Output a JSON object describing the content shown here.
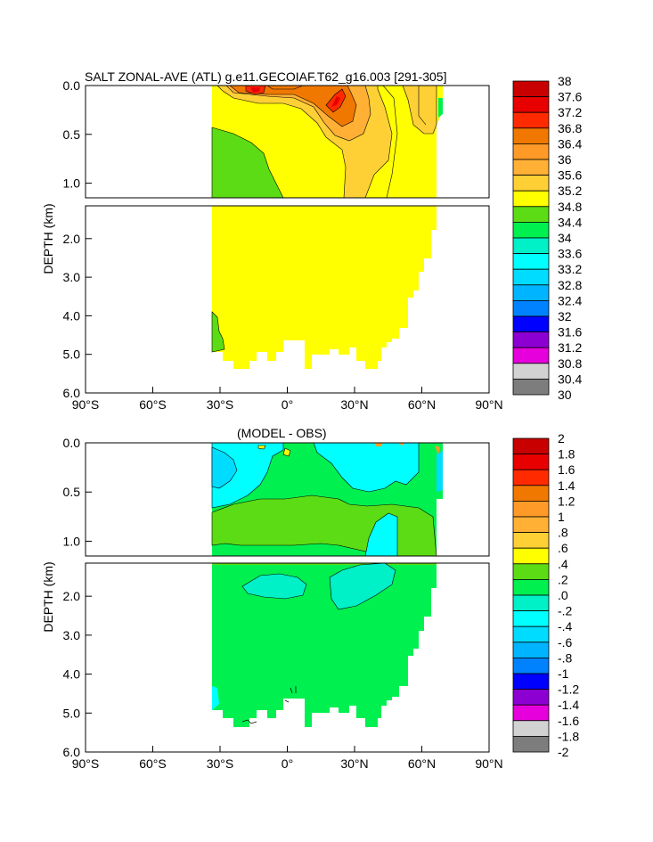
{
  "chart_data": [
    {
      "type": "heatmap",
      "title": "SALT ZONAL-AVE (ATL) g.e11.GECOIAF.T62_g16.003 [291-305]",
      "ylabel": "DEPTH (km)",
      "xlim": [
        -90,
        90
      ],
      "ylim_upper_km": [
        0.0,
        1.15
      ],
      "ylim_lower_km": [
        1.15,
        6.0
      ],
      "x_ticks": [
        -90,
        -60,
        -30,
        0,
        30,
        60,
        90
      ],
      "x_tick_labels": [
        "90°S",
        "60°S",
        "30°S",
        "0°",
        "30°N",
        "60°N",
        "90°N"
      ],
      "y_ticks_upper": [
        0.0,
        0.5,
        1.0
      ],
      "y_tick_labels_upper": [
        "0.0",
        "0.5",
        "1.0"
      ],
      "y_ticks_lower": [
        2.0,
        3.0,
        4.0,
        5.0,
        6.0
      ],
      "y_tick_labels_lower": [
        "2.0",
        "3.0",
        "4.0",
        "5.0",
        "6.0"
      ],
      "colorbar_labels": [
        "38",
        "37.6",
        "37.2",
        "36.8",
        "36.4",
        "36",
        "35.6",
        "35.2",
        "34.8",
        "34.4",
        "34",
        "33.6",
        "33.2",
        "32.8",
        "32.4",
        "32",
        "31.6",
        "31.2",
        "30.8",
        "30.4",
        "30"
      ],
      "colorbar_colors": [
        "#c80000",
        "#e80000",
        "#ff2a00",
        "#f07800",
        "#ff9a28",
        "#ffb035",
        "#ffd035",
        "#ffff00",
        "#5cdc14",
        "#00f050",
        "#00f0c8",
        "#00ffff",
        "#00dcff",
        "#00b4ff",
        "#0082ff",
        "#0000ff",
        "#8c00d2",
        "#e600dc",
        "#d2d2d2",
        "#7d7d7d"
      ],
      "field_description": "Zonal-average Atlantic salinity; background ~34.8-35.2 at depth, high-salinity core (36-37.6) near surface 0-30N, fresher 34.4-34.8 south of 20S above 1 km"
    },
    {
      "type": "heatmap",
      "title": "(MODEL - OBS)",
      "ylabel": "DEPTH (km)",
      "xlim": [
        -90,
        90
      ],
      "colorbar_labels": [
        "2",
        "1.8",
        "1.6",
        "1.4",
        "1.2",
        "1",
        ".8",
        ".6",
        ".4",
        ".2",
        ".0",
        "-.2",
        "-.4",
        "-.6",
        "-.8",
        "-1",
        "-1.2",
        "-1.4",
        "-1.6",
        "-1.8",
        "-2"
      ],
      "colorbar_colors": [
        "#c80000",
        "#e80000",
        "#ff2a00",
        "#f07800",
        "#ff9a28",
        "#ffb035",
        "#ffd035",
        "#ffff00",
        "#5cdc14",
        "#00f050",
        "#00f0c8",
        "#00ffff",
        "#00dcff",
        "#00b4ff",
        "#0082ff",
        "#0000ff",
        "#8c00d2",
        "#e600dc",
        "#d2d2d2",
        "#7d7d7d"
      ],
      "field_description": "Model minus observed salinity; mostly 0 to 0.2 at depth, -0.2 to 0 patches near surface and around 20N-50N"
    }
  ]
}
